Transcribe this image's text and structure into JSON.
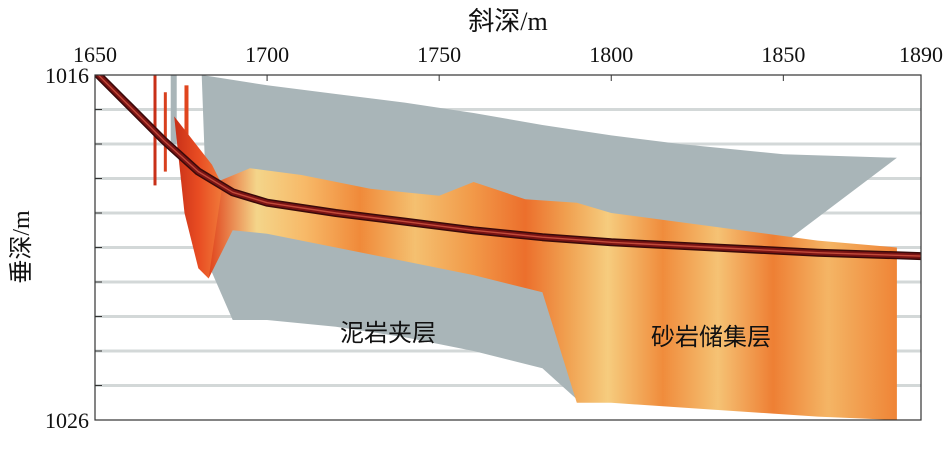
{
  "chart_data": {
    "type": "line",
    "xlabel": "斜深/m",
    "ylabel": "垂深/m",
    "xlim": [
      1650,
      1890
    ],
    "ylim": [
      1016,
      1026
    ],
    "x_ticks": [
      1650,
      1700,
      1750,
      1800,
      1850,
      1890
    ],
    "y_tick_labels": [
      1016,
      1026
    ],
    "y_minor_ticks": [
      1017,
      1018,
      1019,
      1020,
      1021,
      1022,
      1023,
      1024,
      1025
    ],
    "grid": "horizontal",
    "series": [
      {
        "color": "#7a1414",
        "x": [
          1651,
          1660,
          1670,
          1680,
          1690,
          1700,
          1720,
          1740,
          1760,
          1780,
          1800,
          1830,
          1860,
          1890
        ],
        "y": [
          1016.0,
          1016.9,
          1017.9,
          1018.8,
          1019.4,
          1019.7,
          1020.0,
          1020.25,
          1020.5,
          1020.7,
          1020.85,
          1021.0,
          1021.15,
          1021.25
        ]
      }
    ],
    "regions": [
      {
        "label": "泥岩夹层",
        "color": "#a9b5b8",
        "upper": {
          "x": [
            1681,
            1700,
            1720,
            1740,
            1760,
            1780,
            1800,
            1820,
            1850,
            1883
          ],
          "y": [
            1016.0,
            1016.3,
            1016.55,
            1016.8,
            1017.1,
            1017.45,
            1017.75,
            1018.0,
            1018.3,
            1018.4
          ]
        },
        "lower": {
          "x": [
            1683,
            1690,
            1700,
            1720,
            1740,
            1760,
            1780,
            1790
          ],
          "y": [
            1021.5,
            1023.1,
            1023.1,
            1023.3,
            1023.6,
            1024.0,
            1024.5,
            1025.4
          ]
        }
      },
      {
        "label": "砂岩储集层",
        "color": "#f09a40",
        "upper": {
          "x": [
            1683,
            1695,
            1710,
            1730,
            1750,
            1760,
            1775,
            1790,
            1800,
            1830,
            1860,
            1883
          ],
          "y": [
            1019.2,
            1018.7,
            1018.9,
            1019.3,
            1019.5,
            1019.1,
            1019.6,
            1019.7,
            1020.0,
            1020.4,
            1020.8,
            1021.0
          ]
        },
        "lower": {
          "x": [
            1683,
            1690,
            1700,
            1720,
            1740,
            1760,
            1780,
            1790,
            1800,
            1830,
            1860,
            1883
          ],
          "y": [
            1021.9,
            1020.5,
            1020.6,
            1021.0,
            1021.4,
            1021.8,
            1022.3,
            1025.5,
            1025.5,
            1025.7,
            1025.9,
            1026.0
          ]
        }
      }
    ],
    "annotations": [
      "泥岩夹层",
      "砂岩储集层"
    ]
  }
}
